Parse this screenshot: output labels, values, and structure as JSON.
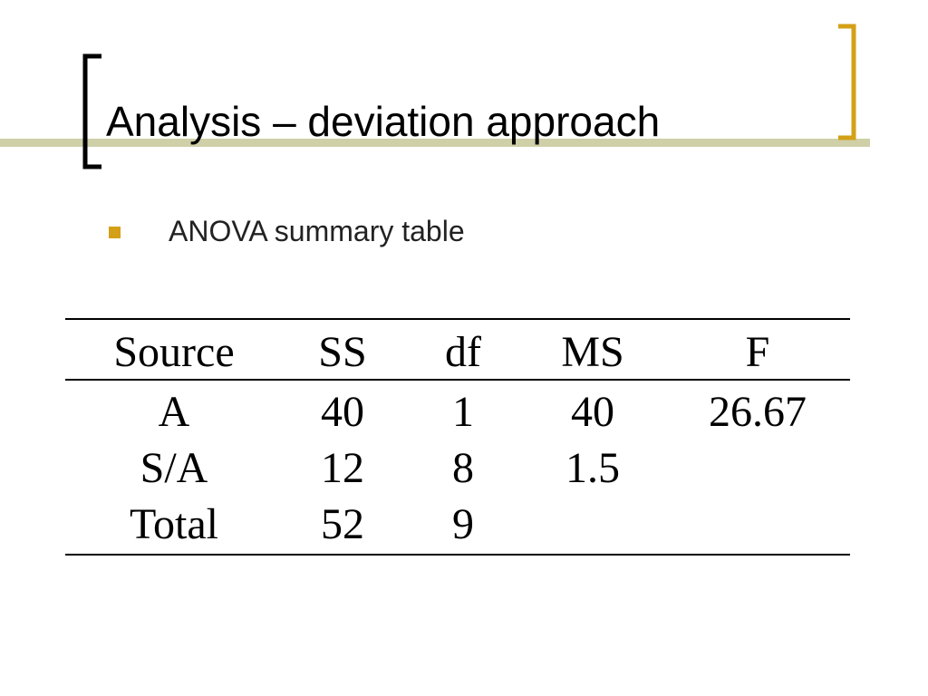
{
  "title": "Analysis – deviation approach",
  "bullet": "ANOVA summary table",
  "table": {
    "header": [
      "Source",
      "SS",
      "df",
      "MS",
      "F"
    ],
    "rows": [
      [
        "A",
        "40",
        "1",
        "40",
        "26.67"
      ],
      [
        "S/A",
        "12",
        "8",
        "1.5"
      ],
      [
        "Total",
        "52",
        "9"
      ]
    ]
  }
}
